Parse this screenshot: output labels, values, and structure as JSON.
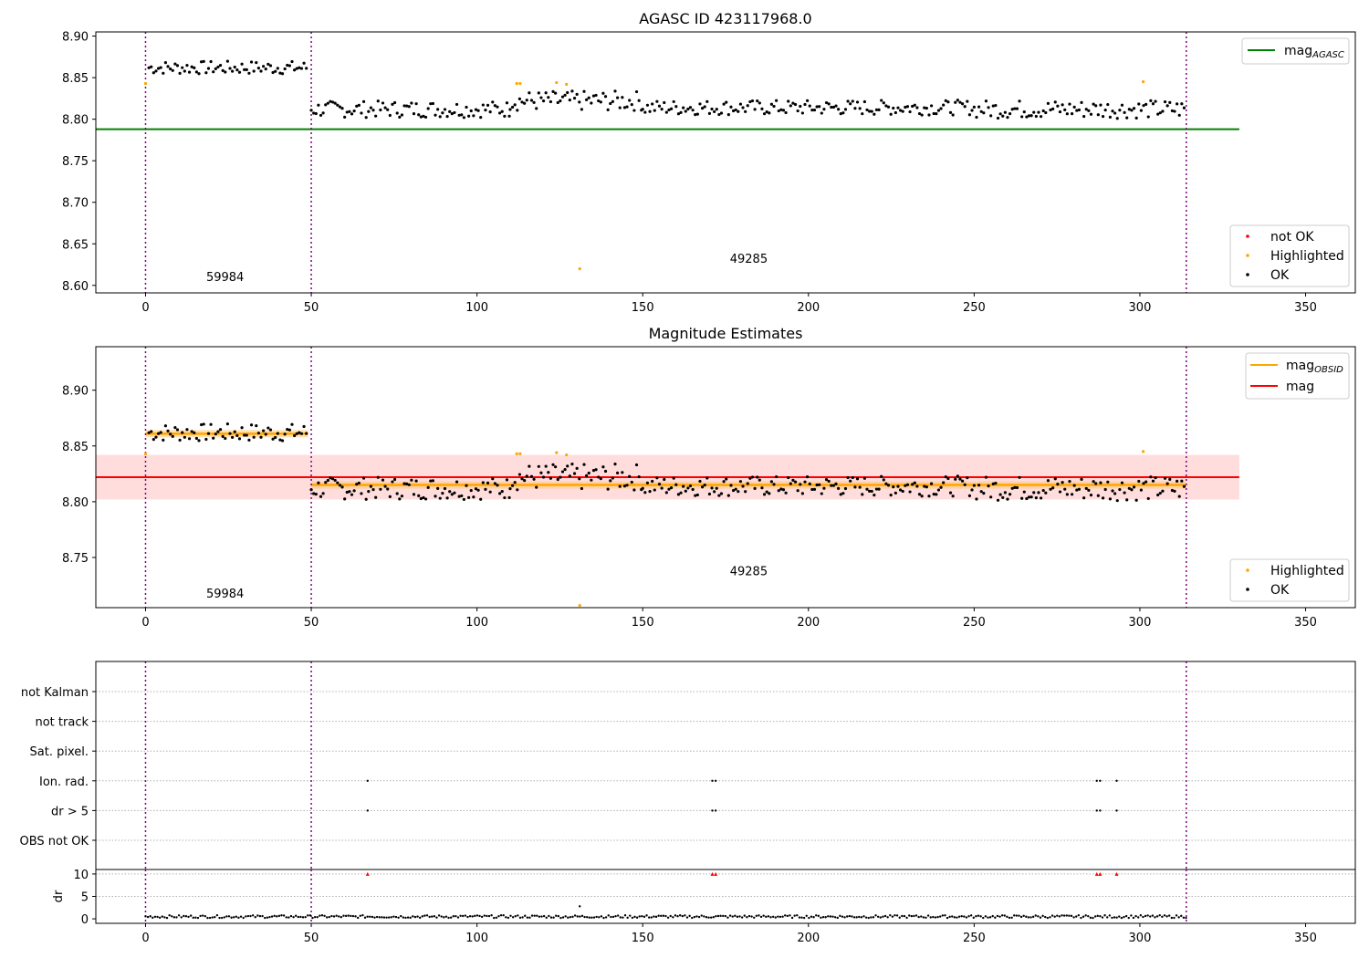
{
  "chart_data": [
    {
      "type": "scatter",
      "title": "AGASC ID 423117968.0",
      "xlim": [
        -15,
        365
      ],
      "ylim": [
        8.591,
        8.905
      ],
      "x_ticks": [
        0,
        50,
        100,
        150,
        200,
        250,
        300,
        350
      ],
      "y_ticks": [
        8.6,
        8.65,
        8.7,
        8.75,
        8.8,
        8.85,
        8.9
      ],
      "y_tick_labels": [
        "8.60",
        "8.65",
        "8.70",
        "8.75",
        "8.80",
        "8.85",
        "8.90"
      ],
      "obs_boundaries": [
        0,
        50,
        314
      ],
      "obs_labels": [
        {
          "text": "59984",
          "x": 24,
          "y": 8.605
        },
        {
          "text": "49285",
          "x": 182,
          "y": 8.627
        }
      ],
      "lines": [
        {
          "name": "mag_AGASC",
          "y": 8.788,
          "x_range": [
            -15,
            330
          ],
          "color": "#008000"
        }
      ],
      "highlighted": [
        [
          0,
          8.843
        ],
        [
          112,
          8.843
        ],
        [
          113,
          8.843
        ],
        [
          124,
          8.844
        ],
        [
          127,
          8.842
        ],
        [
          131,
          8.62
        ],
        [
          301,
          8.845
        ]
      ],
      "not_ok": [],
      "ok_segments": [
        {
          "x_start": 1,
          "x_end": 49,
          "base": 8.862,
          "spread": 0.008
        },
        {
          "x_start": 50,
          "x_end": 110,
          "base": 8.812,
          "spread": 0.01
        },
        {
          "x_start": 110,
          "x_end": 150,
          "base": 8.822,
          "spread": 0.012
        },
        {
          "x_start": 150,
          "x_end": 250,
          "base": 8.814,
          "spread": 0.009
        },
        {
          "x_start": 250,
          "x_end": 314,
          "base": 8.812,
          "spread": 0.011
        }
      ],
      "legend_lines": [
        {
          "label": "mag",
          "sub": "AGASC",
          "color": "#008000"
        }
      ],
      "legend_markers": [
        {
          "label": "not OK",
          "color": "#ff0000"
        },
        {
          "label": "Highlighted",
          "color": "#ffa500"
        },
        {
          "label": "OK",
          "color": "#000000"
        }
      ]
    },
    {
      "type": "scatter",
      "title": "Magnitude Estimates",
      "xlim": [
        -15,
        365
      ],
      "ylim": [
        8.705,
        8.939
      ],
      "x_ticks": [
        0,
        50,
        100,
        150,
        200,
        250,
        300,
        350
      ],
      "y_ticks": [
        8.75,
        8.8,
        8.85,
        8.9
      ],
      "y_tick_labels": [
        "8.75",
        "8.80",
        "8.85",
        "8.90"
      ],
      "obs_boundaries": [
        0,
        50,
        314
      ],
      "obs_labels": [
        {
          "text": "59984",
          "x": 24,
          "y": 8.714
        },
        {
          "text": "49285",
          "x": 182,
          "y": 8.734
        }
      ],
      "band": {
        "y_low": 8.802,
        "y_high": 8.842,
        "x_range": [
          -15,
          330
        ],
        "color": "#ffdddd"
      },
      "mag_line": {
        "name": "mag",
        "y": 8.822,
        "x_range": [
          -15,
          330
        ],
        "color": "#ff0000"
      },
      "obsid_mags": [
        {
          "x_start": 0,
          "x_end": 49,
          "y": 8.861
        },
        {
          "x_start": 50,
          "x_end": 314,
          "y": 8.815
        }
      ],
      "highlighted": [
        [
          0,
          8.843
        ],
        [
          112,
          8.843
        ],
        [
          113,
          8.843
        ],
        [
          124,
          8.844
        ],
        [
          127,
          8.842
        ],
        [
          131,
          8.707
        ],
        [
          301,
          8.845
        ]
      ],
      "legend_lines": [
        {
          "label": "mag",
          "sub": "OBSID",
          "color": "#ffa500"
        },
        {
          "label": "mag",
          "sub": "",
          "color": "#ff0000"
        }
      ],
      "legend_markers": [
        {
          "label": "Highlighted",
          "color": "#ffa500"
        },
        {
          "label": "OK",
          "color": "#000000"
        }
      ]
    },
    {
      "type": "scatter",
      "title": "",
      "categories": [
        "not Kalman",
        "not track",
        "Sat. pixel.",
        "Ion. rad.",
        "dr > 5",
        "OBS not OK"
      ],
      "flags": [
        {
          "category": "Ion. rad.",
          "x": [
            67,
            171,
            172,
            287,
            288,
            293
          ]
        },
        {
          "category": "dr > 5",
          "x": [
            67,
            171,
            172,
            287,
            288,
            293
          ]
        }
      ],
      "obs_boundaries": [
        0,
        50,
        314
      ],
      "xlim": [
        -15,
        365
      ]
    },
    {
      "type": "scatter",
      "title": "",
      "ylabel": "dr",
      "xlim": [
        -15,
        365
      ],
      "ylim": [
        -1,
        11
      ],
      "x_ticks": [
        0,
        50,
        100,
        150,
        200,
        250,
        300,
        350
      ],
      "y_ticks": [
        0,
        5,
        10
      ],
      "y_tick_labels": [
        "0",
        "5",
        "10"
      ],
      "obs_boundaries": [
        0,
        50,
        314
      ],
      "capped_points": [
        67,
        171,
        172,
        287,
        288,
        293
      ],
      "cap_value": 10,
      "peak_point": [
        131,
        2.8
      ]
    }
  ]
}
